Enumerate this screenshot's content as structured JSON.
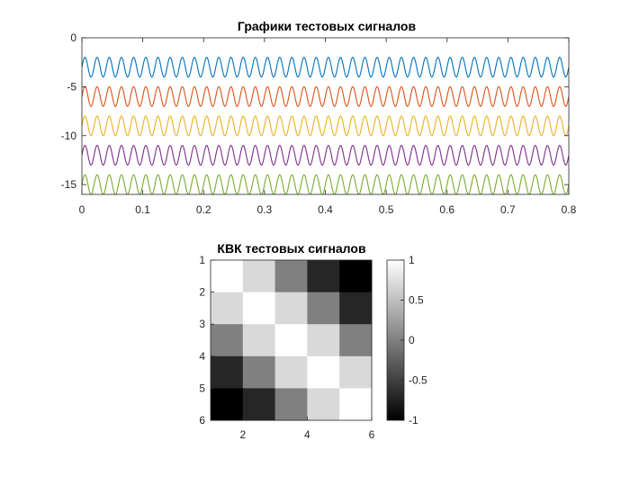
{
  "chart_data": [
    {
      "type": "line",
      "title": "Графики тестовых сигналов",
      "xlabel": "",
      "ylabel": "",
      "xlim": [
        0,
        0.8
      ],
      "ylim": [
        -16,
        0
      ],
      "xticks": [
        0,
        0.1,
        0.2,
        0.3,
        0.4,
        0.5,
        0.6,
        0.7,
        0.8
      ],
      "xtick_labels": [
        "0",
        "0.1",
        "0.2",
        "0.3",
        "0.4",
        "0.5",
        "0.6",
        "0.7",
        "0.8"
      ],
      "yticks": [
        0,
        -5,
        -10,
        -15
      ],
      "ytick_labels": [
        "0",
        "-5",
        "-10",
        "-15"
      ],
      "grid": false,
      "legend": "none",
      "series": [
        {
          "color": "#0072BD",
          "offset": -3,
          "amplitude": 1,
          "frequency_hz": 50
        },
        {
          "color": "#D95319",
          "offset": -6,
          "amplitude": 1,
          "frequency_hz": 50
        },
        {
          "color": "#EDB120",
          "offset": -9,
          "amplitude": 1,
          "frequency_hz": 50
        },
        {
          "color": "#7E2F8E",
          "offset": -12,
          "amplitude": 1,
          "frequency_hz": 50
        },
        {
          "color": "#77AC30",
          "offset": -15,
          "amplitude": 1,
          "frequency_hz": 50
        }
      ]
    },
    {
      "type": "heatmap",
      "title": "КВК тестовых сигналов",
      "colormap": "gray",
      "clim": [
        -1,
        1
      ],
      "xticks": [
        2,
        4,
        6
      ],
      "xtick_labels": [
        "2",
        "4",
        "6"
      ],
      "yticks": [
        1,
        2,
        3,
        4,
        5,
        6
      ],
      "ytick_labels": [
        "1",
        "2",
        "3",
        "4",
        "5",
        "6"
      ],
      "colorbar_ticks": [
        1,
        0.5,
        0,
        -0.5,
        -1
      ],
      "colorbar_tick_labels": [
        "1",
        "0.5",
        "0",
        "-0.5",
        "-1"
      ],
      "values": [
        [
          1.0,
          0.7,
          0.0,
          -0.7,
          -1.0
        ],
        [
          0.7,
          1.0,
          0.7,
          0.0,
          -0.7
        ],
        [
          0.0,
          0.7,
          1.0,
          0.7,
          0.0
        ],
        [
          -0.7,
          0.0,
          0.7,
          1.0,
          0.7
        ],
        [
          -1.0,
          -0.7,
          0.0,
          0.7,
          1.0
        ]
      ]
    }
  ]
}
